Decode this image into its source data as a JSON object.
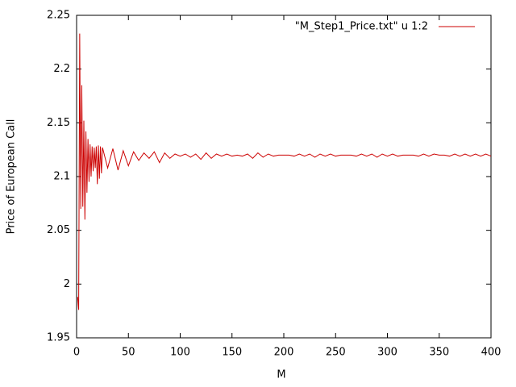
{
  "chart_data": {
    "type": "line",
    "x_label": "M",
    "y_label": "Price of European Call",
    "x": [
      1,
      2,
      3,
      4,
      5,
      6,
      7,
      8,
      9,
      10,
      11,
      12,
      13,
      14,
      15,
      16,
      17,
      18,
      19,
      20,
      21,
      22,
      23,
      24,
      25,
      30,
      35,
      40,
      45,
      50,
      55,
      60,
      65,
      70,
      75,
      80,
      85,
      90,
      95,
      100,
      105,
      110,
      115,
      120,
      125,
      130,
      135,
      140,
      145,
      150,
      155,
      160,
      165,
      170,
      175,
      180,
      185,
      190,
      195,
      200,
      205,
      210,
      215,
      220,
      225,
      230,
      235,
      240,
      245,
      250,
      255,
      260,
      265,
      270,
      275,
      280,
      285,
      290,
      295,
      300,
      305,
      310,
      315,
      320,
      325,
      330,
      335,
      340,
      345,
      350,
      355,
      360,
      365,
      370,
      375,
      380,
      385,
      390,
      395,
      400
    ],
    "series": [
      {
        "name": "\"M_Step1_Price.txt\" u 1:2",
        "color": "#cc0000",
        "values": [
          1.988,
          1.976,
          2.233,
          2.07,
          2.185,
          2.072,
          2.152,
          2.06,
          2.142,
          2.085,
          2.135,
          2.095,
          2.13,
          2.1,
          2.128,
          2.105,
          2.127,
          2.108,
          2.128,
          2.093,
          2.129,
          2.098,
          2.128,
          2.103,
          2.127,
          2.108,
          2.126,
          2.106,
          2.124,
          2.11,
          2.123,
          2.115,
          2.122,
          2.117,
          2.123,
          2.113,
          2.122,
          2.117,
          2.121,
          2.119,
          2.121,
          2.118,
          2.121,
          2.116,
          2.122,
          2.117,
          2.121,
          2.119,
          2.121,
          2.119,
          2.12,
          2.119,
          2.121,
          2.117,
          2.122,
          2.118,
          2.121,
          2.119,
          2.12,
          2.12,
          2.12,
          2.119,
          2.121,
          2.119,
          2.121,
          2.118,
          2.121,
          2.119,
          2.121,
          2.119,
          2.12,
          2.12,
          2.12,
          2.119,
          2.121,
          2.119,
          2.121,
          2.118,
          2.121,
          2.119,
          2.121,
          2.119,
          2.12,
          2.12,
          2.12,
          2.119,
          2.121,
          2.119,
          2.121,
          2.12,
          2.12,
          2.119,
          2.121,
          2.119,
          2.121,
          2.119,
          2.121,
          2.119,
          2.121,
          2.119
        ]
      }
    ],
    "xlim": [
      0,
      400
    ],
    "xticks": [
      0,
      50,
      100,
      150,
      200,
      250,
      300,
      350,
      400
    ],
    "ylim": [
      1.95,
      2.25
    ],
    "yticks": [
      1.95,
      2,
      2.05,
      2.1,
      2.15,
      2.2,
      2.25
    ],
    "legend": "top-right",
    "grid": false
  }
}
